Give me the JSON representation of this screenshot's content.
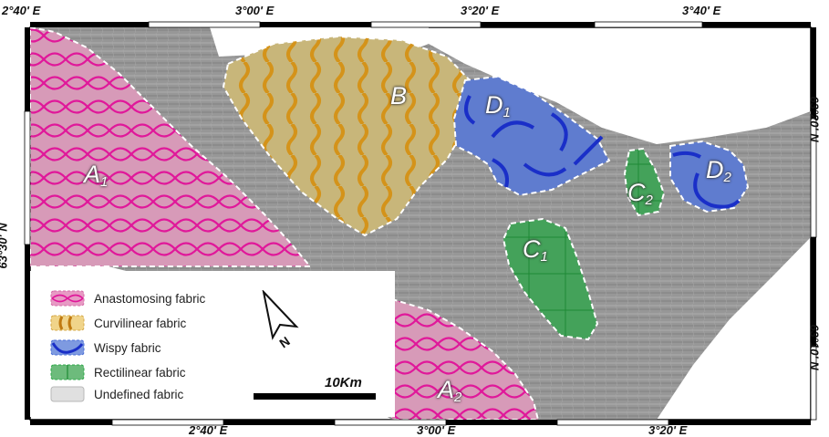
{
  "top_labels": [
    "2°40' E",
    "3°00' E",
    "3°20' E",
    "3°40' E"
  ],
  "bottom_labels": [
    "2°40' E",
    "3°00' E",
    "3°20' E"
  ],
  "left_labels": [
    "63°30' N"
  ],
  "right_labels": [
    "63°20' N",
    "63°10' N"
  ],
  "zones": [
    {
      "letter": "A",
      "sub": "1"
    },
    {
      "letter": "A",
      "sub": "2"
    },
    {
      "letter": "B",
      "sub": ""
    },
    {
      "letter": "C",
      "sub": "1"
    },
    {
      "letter": "C",
      "sub": "2"
    },
    {
      "letter": "D",
      "sub": "1"
    },
    {
      "letter": "D",
      "sub": "2"
    }
  ],
  "legend": [
    {
      "label": "Anastomosing fabric",
      "color": "#e06fae"
    },
    {
      "label": "Curvilinear fabric",
      "color": "#e0be5a"
    },
    {
      "label": "Wispy fabric",
      "color": "#4a6fd8"
    },
    {
      "label": "Rectilinear fabric",
      "color": "#2fa84a"
    },
    {
      "label": "Undefined fabric",
      "color": "#d8d8d8"
    }
  ],
  "scale": {
    "label": "10Km"
  },
  "north": {
    "letter": "N"
  },
  "colors": {
    "anastomosing_line": "#e0189a",
    "curvilinear_line": "#d4931a",
    "wispy_line": "#1a2fc8",
    "rectilinear_line": "#1e8a35",
    "relief": "#9a9a9a"
  }
}
